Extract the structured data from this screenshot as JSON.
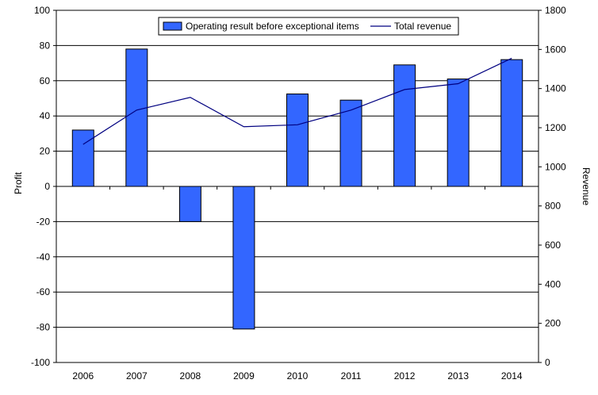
{
  "chart_data": {
    "type": "bar",
    "categories": [
      "2006",
      "2007",
      "2008",
      "2009",
      "2010",
      "2011",
      "2012",
      "2013",
      "2014"
    ],
    "series": [
      {
        "name": "Operating result before exceptional items",
        "type": "bar",
        "axis": "left",
        "color": "#3366ff",
        "values": [
          32,
          78,
          -20,
          -81,
          52.5,
          49,
          69,
          61,
          72
        ]
      },
      {
        "name": "Total revenue",
        "type": "line",
        "axis": "right",
        "color": "#000080",
        "values": [
          1115,
          1290,
          1355,
          1205,
          1215,
          1290,
          1395,
          1425,
          1555
        ]
      }
    ],
    "ylabel": "Profit",
    "y2label": "Revenue",
    "ylim": [
      -100,
      100
    ],
    "y2lim": [
      0,
      1800
    ],
    "yticks": [
      "100",
      "80",
      "60",
      "40",
      "20",
      "0",
      "-20",
      "-40",
      "-60",
      "-80",
      "-100"
    ],
    "y2ticks": [
      "1800",
      "1600",
      "1400",
      "1200",
      "1000",
      "800",
      "600",
      "400",
      "200",
      "0"
    ],
    "grid": true,
    "legend": "top"
  }
}
